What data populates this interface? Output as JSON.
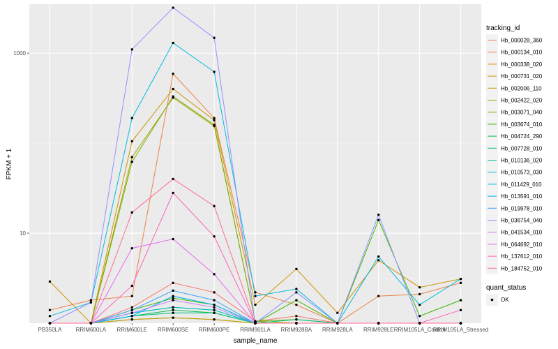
{
  "chart_data": {
    "type": "line",
    "xlabel": "sample_name",
    "ylabel": "FPKM + 1",
    "y_scale": "log10",
    "ylim": [
      1,
      3500
    ],
    "y_ticks": [
      10,
      1000
    ],
    "grid": true,
    "legend_placement": "right",
    "categories": [
      "PB350LA",
      "RRIM600LA",
      "RRIM600LE",
      "RRIM600SE",
      "RRIM600PE",
      "RRIM901LA",
      "RRIM928BA",
      "RRIM928LA",
      "RRIM928LE",
      "RRIM105LA_Control",
      "RRIM105LA_Stressed"
    ],
    "series": [
      {
        "name": "Hb_000028_360",
        "color": "#F8766D",
        "values": [
          1,
          1,
          1.5,
          2.8,
          2.2,
          1.05,
          1.2,
          1,
          1,
          1,
          1
        ]
      },
      {
        "name": "Hb_000134_010",
        "color": "#EE8044",
        "values": [
          1.4,
          1.8,
          2,
          590,
          190,
          2.2,
          1.6,
          1,
          2,
          2.1,
          2.8
        ]
      },
      {
        "name": "Hb_000338_020",
        "color": "#E08B00",
        "values": [
          1,
          1,
          1.1,
          1.15,
          1.1,
          1,
          1,
          1,
          1,
          1,
          1
        ]
      },
      {
        "name": "Hb_000731_020",
        "color": "#CF9400",
        "values": [
          2.9,
          1,
          105,
          400,
          180,
          1.6,
          4.0,
          1.3,
          5,
          2.5,
          3.1
        ]
      },
      {
        "name": "Hb_002006_110",
        "color": "#BA9E00",
        "values": [
          1,
          1,
          1.1,
          1.15,
          1.1,
          1,
          1,
          1,
          1,
          1,
          1
        ]
      },
      {
        "name": "Hb_002422_020",
        "color": "#A3A500",
        "values": [
          1,
          1,
          70,
          320,
          155,
          1.05,
          1,
          1,
          1,
          1,
          1
        ]
      },
      {
        "name": "Hb_003071_040",
        "color": "#7CAE00",
        "values": [
          1,
          1,
          62,
          330,
          160,
          1.05,
          1.1,
          1,
          1,
          1,
          1
        ]
      },
      {
        "name": "Hb_003674_010",
        "color": "#39B600",
        "values": [
          1,
          1,
          1.4,
          1.9,
          1.6,
          1,
          1.8,
          1,
          14,
          1.2,
          1.8
        ]
      },
      {
        "name": "Hb_004724_290",
        "color": "#00BB4E",
        "values": [
          1,
          1,
          1.2,
          1.4,
          1.3,
          1,
          1,
          1,
          1,
          1,
          1
        ]
      },
      {
        "name": "Hb_007728_010",
        "color": "#00BF7D",
        "values": [
          1,
          1,
          1.2,
          1.3,
          1.3,
          1,
          1.1,
          1,
          1,
          1,
          1
        ]
      },
      {
        "name": "Hb_010136_020",
        "color": "#00C1A3",
        "values": [
          1,
          1,
          1.3,
          1.5,
          1.4,
          1,
          1,
          1,
          1,
          1,
          1
        ]
      },
      {
        "name": "Hb_010573_030",
        "color": "#00BFC4",
        "values": [
          1,
          1,
          1.3,
          1.5,
          1.4,
          1,
          1,
          1,
          1,
          1,
          1
        ]
      },
      {
        "name": "Hb_011429_010",
        "color": "#00BAE0",
        "values": [
          1.2,
          1.7,
          190,
          1300,
          620,
          2.0,
          2.4,
          1,
          5.5,
          1.6,
          3.1
        ]
      },
      {
        "name": "Hb_013591_010",
        "color": "#00B0F6",
        "values": [
          1,
          1,
          1.2,
          2.0,
          1.6,
          1,
          1,
          1,
          1,
          1,
          1
        ]
      },
      {
        "name": "Hb_019978_010",
        "color": "#35A2FF",
        "values": [
          1,
          1,
          1.4,
          2.3,
          1.8,
          1,
          1,
          1,
          1,
          1,
          1
        ]
      },
      {
        "name": "Hb_036754_040",
        "color": "#9590FF",
        "values": [
          1,
          1.7,
          1100,
          3200,
          1480,
          1,
          2.2,
          1,
          16,
          1,
          1
        ]
      },
      {
        "name": "Hb_041534_010",
        "color": "#C77CFF",
        "values": [
          1,
          1,
          1.3,
          1.8,
          1.5,
          1,
          1,
          1,
          1,
          1,
          1
        ]
      },
      {
        "name": "Hb_064692_010",
        "color": "#E76BF3",
        "values": [
          1,
          1,
          6.8,
          8.6,
          3.5,
          1,
          1,
          1,
          1,
          1,
          1
        ]
      },
      {
        "name": "Hb_137612_010",
        "color": "#FF62BC",
        "values": [
          1,
          1,
          2.6,
          28,
          9.2,
          1,
          1,
          1,
          1,
          1,
          1.4
        ]
      },
      {
        "name": "Hb_184752_010",
        "color": "#FF6C91",
        "values": [
          1,
          1,
          17,
          40,
          20,
          1,
          1,
          1,
          1,
          1,
          1
        ]
      }
    ],
    "legend": {
      "title": "tracking_id",
      "shape_title": "quant_status",
      "shape_label": "OK"
    }
  }
}
